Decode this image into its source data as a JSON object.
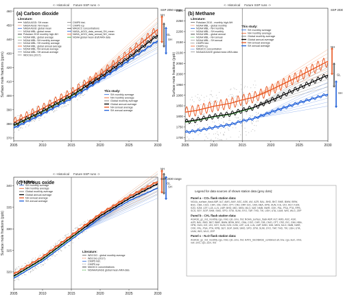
{
  "chart_data": [
    {
      "type": "line",
      "panel_label": "(a) Carbon dioxide",
      "ylabel": "Surface mole fractions (ppm)",
      "xlim": [
        2005,
        2030
      ],
      "ylim": [
        368,
        462
      ],
      "x_ticks": [
        "2005",
        "2010",
        "2015",
        "2020",
        "2025",
        "2030"
      ],
      "y_ticks": [
        "370",
        "380",
        "390",
        "400",
        "410",
        "420",
        "430",
        "440",
        "450",
        "460"
      ],
      "period_labels": [
        "<- Historical",
        "Future SSP runs ->"
      ],
      "ssp_label": "SSP 2050 range",
      "range_labels": [
        "NH",
        "GL",
        "SH"
      ],
      "literature_title": "Literature:",
      "literature_items": [
        "NASA AGGI: SH mean",
        "NASA AGGI: NH mean",
        "NASA AGGI: global mean",
        "NOAA MBL: global mean",
        "Potsdam 2010 monthly high-NH",
        "NOAA MBL: global average",
        "NOAA MBL: NH monthly average",
        "NOAA MBL: SH monthly average",
        "NOAA MBL: global annual average",
        "NOAA MBL: NH annual average",
        "NOAA MBL: SH annual average",
        "WDCGG (2017)"
      ],
      "legend_mid": [
        "CMIP5 hist.",
        "CMIP5 rcp",
        "MAGICC concentrations",
        "NASA_AGGI_data_annual_SH_mean",
        "NASA_AGGI_data_annual_NH_mean",
        "NOAA global mean draft ARA data"
      ],
      "study_title": "This study:",
      "study_items": [
        "SH monthly average",
        "NH monthly average",
        "Global monthly average",
        "Global annual average",
        "NH annual average",
        "SH annual average"
      ],
      "series": [
        {
          "name": "Global annual average",
          "x": [
            2005,
            2010,
            2015,
            2020,
            2025,
            2030
          ],
          "y": [
            379,
            389,
            400,
            413,
            427,
            443
          ]
        },
        {
          "name": "NH annual average",
          "x": [
            2005,
            2010,
            2015,
            2020,
            2025,
            2030
          ],
          "y": [
            381,
            391,
            402,
            415,
            430,
            447
          ]
        },
        {
          "name": "SH annual average",
          "x": [
            2005,
            2010,
            2015,
            2020,
            2025,
            2030
          ],
          "y": [
            377,
            387,
            398,
            411,
            425,
            439
          ]
        }
      ]
    },
    {
      "type": "line",
      "panel_label": "(b) Methane",
      "ylabel": "Surface mole fractions (ppb)",
      "xlim": [
        2005,
        2030
      ],
      "ylim": [
        1685,
        2310
      ],
      "x_ticks": [
        "2005",
        "2010",
        "2015",
        "2020",
        "2025",
        "2030"
      ],
      "y_ticks": [
        "1700",
        "1750",
        "1800",
        "1850",
        "1900",
        "1950",
        "2000",
        "2050",
        "2100",
        "2150",
        "2200",
        "2250",
        "2300"
      ],
      "period_labels": [
        "<- Historical",
        "Future SSP runs ->"
      ],
      "ssp_label": "SSP 2030 range",
      "range_labels": [
        "NH",
        "GL",
        "SH"
      ],
      "literature_title": "Literature:",
      "literature_items": [
        "Potsdam 2010 - monthly high-NH",
        "NOAA MBL - global monthly",
        "NOAA MBL - NH monthly",
        "NOAA MBL - SH monthly",
        "NOAA MBL - global annual",
        "NOAA MBL - NH annual",
        "NOAA MBL - SH annual",
        "CMIP5 hist.",
        "CMIP5 rcp",
        "MAGICC concentration",
        "NOAA/AGAGE global mean ARA data"
      ],
      "study_title": "This study:",
      "study_items": [
        "SH monthly average",
        "NH monthly average",
        "Global monthly average",
        "Global annual average",
        "NH annual average",
        "SH annual average"
      ],
      "series": [
        {
          "name": "NH annual average",
          "x": [
            2005,
            2007,
            2010,
            2013,
            2015,
            2017,
            2020,
            2025,
            2030
          ],
          "y": [
            1820,
            1828,
            1848,
            1862,
            1878,
            1890,
            1925,
            1990,
            2060
          ]
        },
        {
          "name": "Global annual average",
          "x": [
            2005,
            2007,
            2010,
            2013,
            2015,
            2017,
            2020,
            2025,
            2030
          ],
          "y": [
            1775,
            1783,
            1800,
            1812,
            1828,
            1842,
            1875,
            1935,
            1995
          ]
        },
        {
          "name": "SH annual average",
          "x": [
            2005,
            2007,
            2010,
            2013,
            2015,
            2017,
            2020,
            2025,
            2030
          ],
          "y": [
            1725,
            1732,
            1748,
            1762,
            1778,
            1790,
            1820,
            1865,
            1905
          ]
        }
      ]
    },
    {
      "type": "line",
      "panel_label": "(c) Nitrous oxide",
      "ylabel": "Surface mole fractions (ppb)",
      "xlim": [
        2005,
        2030
      ],
      "ylim": [
        316,
        342
      ],
      "x_ticks": [
        "2005",
        "2010",
        "2015",
        "2020",
        "2025",
        "2030"
      ],
      "y_ticks": [
        "320",
        "325",
        "330",
        "335",
        "340"
      ],
      "period_labels": [
        "<- Historical",
        "Future SSP runs ->"
      ],
      "ssp_label": "SSP 2030 range",
      "range_labels": [
        "NH",
        "GL",
        "SH"
      ],
      "study_title": "This study:",
      "study_items": [
        "SH monthly average",
        "NH monthly average",
        "Global monthly average",
        "Global annual average",
        "NH annual average",
        "SH annual average"
      ],
      "literature_title": "Literature:",
      "literature_items": [
        "WDCGG - global monthly average",
        "WDCGG (2017)",
        "CMIP5 hist.",
        "CMIP5 rcp",
        "MAGICC concentrations",
        "NOAA/AGAGE global mean ARA data"
      ],
      "series": [
        {
          "name": "Global annual average",
          "x": [
            2005,
            2010,
            2015,
            2020,
            2025,
            2030
          ],
          "y": [
            319,
            323,
            328,
            333,
            337,
            340.5
          ]
        },
        {
          "name": "NH annual average",
          "x": [
            2005,
            2010,
            2015,
            2020,
            2025,
            2030
          ],
          "y": [
            319.5,
            323.5,
            328.5,
            333.5,
            337.5,
            341
          ]
        },
        {
          "name": "SH annual average",
          "x": [
            2005,
            2010,
            2015,
            2020,
            2025,
            2030
          ],
          "y": [
            318.5,
            322.5,
            327.5,
            332.5,
            336.5,
            339.5
          ]
        }
      ]
    }
  ],
  "legend_box": {
    "title": "Legend for data sources of shown station data (grey dots):",
    "sections": [
      {
        "heading": "Panel a - CO₂ flask station data:",
        "body": "NOAA_surface_flask ABP, ALT, AMS, AMY, ASC, ASK, AVI, AZR, BAL, BHD, BKT, BME, BMW, BRW, BSC, CBA, CGO, CHR, CIB, CMO, CPT, CRZ, DRP, EIC, GMI, HBA, HPB, HUN, ICE, IZO, KEY, KUM, KZD, KZM, LEF, LLB, LLN, LMP, MHD, MID, MKN, MLO, NAT, NMB, NWR, OXK, PAL, PSA, PTA, RPB, SCS, SEY, SGP, SHM, SMO, SPO, STM, SUM, SYO, TAP, THD, TIK, USH, UTA, UUM, WIS, WLG, ZEP"
      },
      {
        "heading": "Panel b - CH₄ flask station data:",
        "body": "AGAGE_gc_md_monthly cgo, mhd, rpb, smo, thd; NOAA_surface_flask ABP, ALT, AMS, ASC, ASK, AZR, BAL, BHD, BKT, BME, BMW, BRW, BSC, CBA, CGO, CHR, CIB, CMO, CPT, CRZ, EIC, GMI, HBA, HPB, HUN, ICE, IZO, KEY, KUM, KZD, KZM, LEF, LLB, LLN, LMP, MHD, MID, MKN, MLO, NMB, NWR, OXK, PAL, PSA, PTA, RPB, SEY, SGP, SHM, SMO, SPO, STM, SUM, SYO, TAP, THD, TIK, USH, UTA, UUM, WIS, WLG, ZEP"
      },
      {
        "heading": "Panel c - N₂O flask station data:",
        "body": "AGAGE_gc_md_monthly cgo, mhd, rpb, smo, thd; HATS_GEOBASE_combined alt, brw, cgo, kum, mhd, nwr, smo, spo, sum, thd"
      }
    ]
  },
  "colors": {
    "global": "#000000",
    "nh": "#e8541e",
    "sh": "#1f5fd8",
    "nh_light": "#f2a37a",
    "sh_light": "#84a9ee",
    "global_light": "#8c8c8c",
    "green": "#2ca02c",
    "station": "#b5b5b5"
  }
}
